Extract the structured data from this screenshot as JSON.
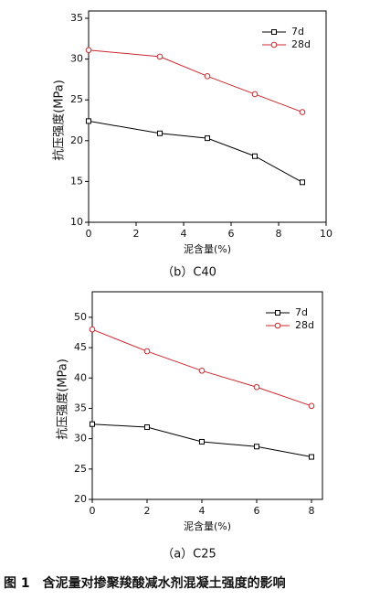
{
  "chart_data": [
    {
      "type": "line",
      "title": "（b）C40",
      "x_label": "泥含量(%)",
      "y_label": "抗压强度(MPa)",
      "x": [
        0,
        3,
        5,
        7,
        9
      ],
      "series": [
        {
          "name": "7d",
          "color": "#000000",
          "marker": "square",
          "values": [
            22.4,
            20.9,
            20.3,
            18.1,
            14.9
          ]
        },
        {
          "name": "28d",
          "color": "#c8282e",
          "marker": "circle",
          "values": [
            31.1,
            30.3,
            27.9,
            25.7,
            23.5
          ]
        }
      ],
      "xlim": [
        0,
        10
      ],
      "xticks": [
        0,
        2,
        4,
        6,
        8,
        10
      ],
      "ylim": [
        10,
        35
      ],
      "yticks": [
        10,
        15,
        20,
        25,
        30,
        35
      ],
      "legend": "upper right"
    },
    {
      "type": "line",
      "title": "（a）C25",
      "x_label": "泥含量(%)",
      "y_label": "抗压强度(MPa)",
      "x": [
        0,
        2,
        4,
        6,
        8
      ],
      "series": [
        {
          "name": "7d",
          "color": "#000000",
          "marker": "square",
          "values": [
            32.4,
            31.9,
            29.5,
            28.7,
            27.0
          ]
        },
        {
          "name": "28d",
          "color": "#c8282e",
          "marker": "circle",
          "values": [
            48.0,
            44.4,
            41.2,
            38.5,
            35.4
          ]
        }
      ],
      "xlim": [
        0,
        8.4
      ],
      "xticks": [
        0,
        2,
        4,
        6,
        8
      ],
      "ylim": [
        20,
        53
      ],
      "yticks": [
        20,
        25,
        30,
        35,
        40,
        45,
        50
      ],
      "legend": "upper right"
    }
  ],
  "figure_caption": "图 1　含泥量对掺聚羧酸减水剂混凝土强度的影响"
}
